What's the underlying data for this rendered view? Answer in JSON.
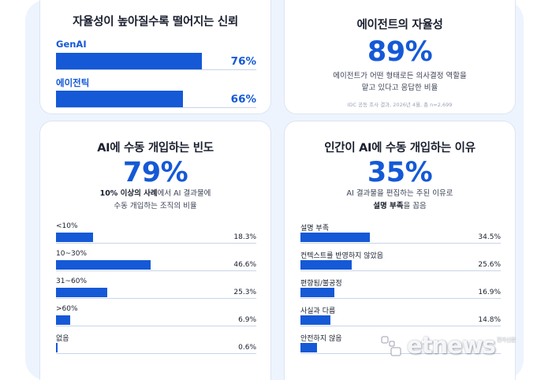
{
  "autonomy_card": {
    "title": "자율성이 높아질수록 떨어지는 신뢰",
    "items": [
      {
        "label": "GenAI",
        "value": "76%",
        "fraction": 0.76
      },
      {
        "label": "에이전틱",
        "value": "66%",
        "fraction": 0.66
      }
    ]
  },
  "agent_card": {
    "title": "에이전트의 자율성",
    "percent": "89%",
    "desc_line1": "에이전트가 어떤 형태로든 의사결정 역할을",
    "desc_line2": "맡고 있다고 응답한 비율",
    "source": "IDC 공동 조사 결과, 2026년 4월, 총 n=2,699"
  },
  "frequency_card": {
    "title": "AI에 수동 개입하는 빈도",
    "percent": "79%",
    "desc_bold": "10% 이상의 사례",
    "desc_rest": "에서 AI 결과물에",
    "desc_line2": "수동 개입하는 조직의 비율",
    "rows": [
      {
        "label": "<10%",
        "value": "18.3%",
        "num": 18.3
      },
      {
        "label": "10~30%",
        "value": "46.6%",
        "num": 46.6
      },
      {
        "label": "31~60%",
        "value": "25.3%",
        "num": 25.3
      },
      {
        "label": ">60%",
        "value": "6.9%",
        "num": 6.9
      },
      {
        "label": "없음",
        "value": "0.6%",
        "num": 0.6
      }
    ]
  },
  "reason_card": {
    "title": "인간이 AI에 수동 개입하는 이유",
    "percent": "35%",
    "desc_line1": "AI 결과물을 편집하는 주된 이유로",
    "desc_bold": "설명 부족",
    "desc_rest": "을 꼽음",
    "rows": [
      {
        "label": "설명 부족",
        "value": "34.5%",
        "num": 34.5
      },
      {
        "label": "컨텍스트를 반영하지 않았음",
        "value": "25.6%",
        "num": 25.6
      },
      {
        "label": "편향됨/불공정",
        "value": "16.9%",
        "num": 16.9
      },
      {
        "label": "사실과 다름",
        "value": "14.8%",
        "num": 14.8
      },
      {
        "label": "안전하지 않음",
        "value": "",
        "num": 8.2
      }
    ]
  },
  "watermark": {
    "text": "etnews",
    "sub": "전자신문"
  },
  "colors": {
    "accent": "#1559d6",
    "panel": "#eef4fd",
    "text": "#1a1f2e"
  }
}
